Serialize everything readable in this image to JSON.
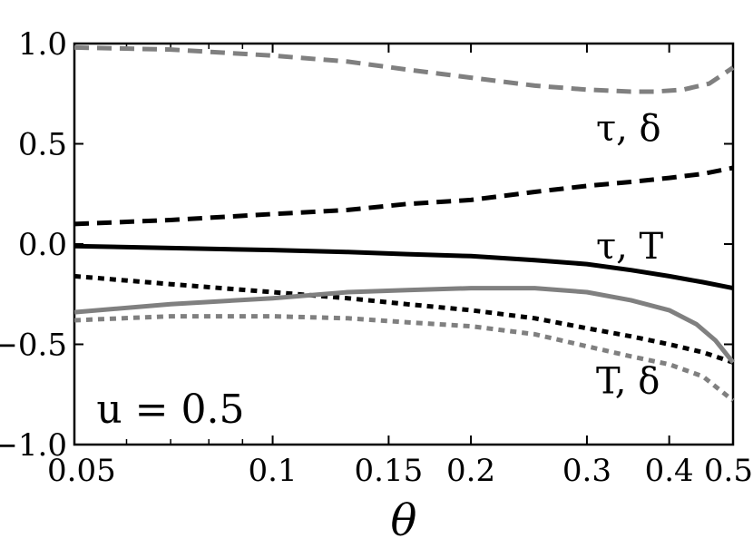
{
  "chart_data": {
    "type": "line",
    "title": "",
    "xlabel": "θ",
    "ylabel": "",
    "xscale": "log",
    "xlim": [
      0.05,
      0.5
    ],
    "ylim": [
      -1.0,
      1.0
    ],
    "grid": false,
    "x_ticks": [
      {
        "value": 0.05,
        "label": "0.05"
      },
      {
        "value": 0.1,
        "label": "0.1"
      },
      {
        "value": 0.15,
        "label": "0.15"
      },
      {
        "value": 0.2,
        "label": "0.2"
      },
      {
        "value": 0.3,
        "label": "0.3"
      },
      {
        "value": 0.4,
        "label": "0.4"
      },
      {
        "value": 0.5,
        "label": "0.5"
      }
    ],
    "y_ticks": [
      {
        "value": 1.0,
        "label": "1.0"
      },
      {
        "value": 0.5,
        "label": "0.5"
      },
      {
        "value": 0.0,
        "label": "0.0"
      },
      {
        "value": -0.5,
        "label": "−0.5"
      },
      {
        "value": -1.0,
        "label": "−1.0"
      }
    ],
    "series": [
      {
        "color": "#808080",
        "dash": "long",
        "x": [
          0.05,
          0.07,
          0.1,
          0.13,
          0.16,
          0.2,
          0.25,
          0.3,
          0.35,
          0.38,
          0.42,
          0.46,
          0.5
        ],
        "y": [
          0.98,
          0.97,
          0.94,
          0.91,
          0.87,
          0.83,
          0.79,
          0.77,
          0.76,
          0.76,
          0.77,
          0.8,
          0.88
        ]
      },
      {
        "color": "#000000",
        "dash": "long",
        "x": [
          0.05,
          0.07,
          0.1,
          0.13,
          0.16,
          0.2,
          0.25,
          0.3,
          0.35,
          0.4,
          0.45,
          0.5
        ],
        "y": [
          0.1,
          0.12,
          0.15,
          0.17,
          0.2,
          0.22,
          0.26,
          0.29,
          0.31,
          0.33,
          0.35,
          0.38
        ]
      },
      {
        "color": "#000000",
        "dash": "solid",
        "x": [
          0.05,
          0.07,
          0.1,
          0.13,
          0.16,
          0.2,
          0.25,
          0.3,
          0.35,
          0.4,
          0.45,
          0.5
        ],
        "y": [
          -0.01,
          -0.02,
          -0.03,
          -0.04,
          -0.05,
          -0.06,
          -0.08,
          -0.1,
          -0.13,
          -0.16,
          -0.19,
          -0.22
        ]
      },
      {
        "color": "#000000",
        "dash": "short",
        "x": [
          0.05,
          0.07,
          0.1,
          0.13,
          0.16,
          0.2,
          0.25,
          0.3,
          0.35,
          0.4,
          0.45,
          0.5
        ],
        "y": [
          -0.16,
          -0.2,
          -0.24,
          -0.27,
          -0.3,
          -0.33,
          -0.37,
          -0.42,
          -0.46,
          -0.5,
          -0.54,
          -0.59
        ]
      },
      {
        "color": "#808080",
        "dash": "solid",
        "x": [
          0.05,
          0.07,
          0.1,
          0.13,
          0.16,
          0.2,
          0.25,
          0.3,
          0.35,
          0.4,
          0.44,
          0.47,
          0.5
        ],
        "y": [
          -0.34,
          -0.3,
          -0.27,
          -0.24,
          -0.23,
          -0.22,
          -0.22,
          -0.24,
          -0.28,
          -0.33,
          -0.4,
          -0.48,
          -0.59
        ]
      },
      {
        "color": "#808080",
        "dash": "short",
        "x": [
          0.05,
          0.07,
          0.1,
          0.13,
          0.16,
          0.2,
          0.25,
          0.3,
          0.35,
          0.4,
          0.45,
          0.5
        ],
        "y": [
          -0.38,
          -0.36,
          -0.36,
          -0.37,
          -0.39,
          -0.41,
          -0.45,
          -0.51,
          -0.56,
          -0.6,
          -0.66,
          -0.78
        ]
      }
    ],
    "annotations": [
      {
        "text": "τ, δ",
        "x": 0.33,
        "y": 0.58
      },
      {
        "text": "τ, T",
        "x": 0.33,
        "y": -0.01
      },
      {
        "text": "T, δ",
        "x": 0.33,
        "y": -0.68
      }
    ],
    "param_label": {
      "text": "u = 0.5",
      "x": 0.052,
      "y": -0.82
    }
  }
}
